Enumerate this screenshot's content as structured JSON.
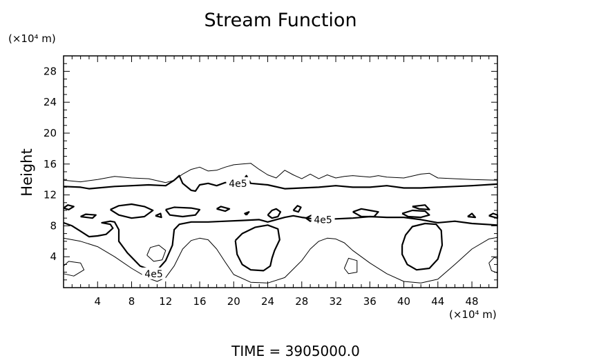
{
  "chart_data": {
    "type": "contour",
    "title": "Stream Function",
    "ylabel": "Height",
    "y_unit": "(×10⁴ m)",
    "x_unit": "(×10⁴ m)",
    "xlim": [
      0,
      51
    ],
    "ylim": [
      0,
      30
    ],
    "x_ticks": [
      4,
      8,
      12,
      16,
      20,
      24,
      28,
      32,
      36,
      40,
      44,
      48
    ],
    "y_ticks": [
      4,
      8,
      12,
      16,
      20,
      24,
      28
    ],
    "contour_labels": [
      {
        "text": "4e5",
        "x": 20.5,
        "y": 13.5
      },
      {
        "text": "4e5",
        "x": 30.5,
        "y": 8.8
      },
      {
        "text": "4e5",
        "x": 10.6,
        "y": 1.8
      }
    ],
    "footer": "TIME  =  3905000.0",
    "contours": {
      "thin": [
        [
          [
            0,
            13.9
          ],
          [
            2,
            13.7
          ],
          [
            4,
            14
          ],
          [
            6,
            14.4
          ],
          [
            8,
            14.2
          ],
          [
            10,
            14.1
          ],
          [
            12,
            13.6
          ],
          [
            13,
            13.9
          ],
          [
            14,
            14.7
          ],
          [
            15,
            15.3
          ],
          [
            16,
            15.6
          ],
          [
            17,
            15.1
          ],
          [
            18,
            15.2
          ],
          [
            19,
            15.6
          ],
          [
            20,
            15.9
          ],
          [
            21,
            16
          ],
          [
            22,
            16.1
          ],
          [
            23,
            15.3
          ],
          [
            24,
            14.6
          ],
          [
            25,
            14.2
          ],
          [
            26,
            15.2
          ],
          [
            27,
            14.6
          ],
          [
            28,
            14.1
          ],
          [
            29,
            14.7
          ],
          [
            30,
            14.1
          ],
          [
            31,
            14.6
          ],
          [
            32,
            14.2
          ],
          [
            33,
            14.4
          ],
          [
            34,
            14.5
          ],
          [
            36,
            14.3
          ],
          [
            37,
            14.5
          ],
          [
            38,
            14.3
          ],
          [
            40,
            14.2
          ],
          [
            42,
            14.7
          ],
          [
            43,
            14.8
          ],
          [
            44,
            14.2
          ],
          [
            46,
            14.1
          ],
          [
            48,
            14
          ],
          [
            51,
            13.9
          ]
        ],
        [
          [
            0,
            6.4
          ],
          [
            2,
            6
          ],
          [
            4,
            5.3
          ],
          [
            6,
            4
          ],
          [
            8,
            2.5
          ],
          [
            10,
            1.2
          ],
          [
            11,
            0.8
          ],
          [
            12,
            1.3
          ],
          [
            13,
            2.8
          ],
          [
            14,
            5
          ],
          [
            15,
            6.1
          ],
          [
            16,
            6.4
          ],
          [
            17,
            6.2
          ],
          [
            18,
            5
          ],
          [
            19,
            3.3
          ],
          [
            20,
            1.7
          ],
          [
            22,
            0.7
          ],
          [
            24,
            0.6
          ],
          [
            26,
            1.3
          ],
          [
            28,
            3.5
          ],
          [
            29,
            5
          ],
          [
            30,
            6
          ],
          [
            31,
            6.4
          ],
          [
            32,
            6.3
          ],
          [
            33,
            5.8
          ],
          [
            34,
            4.8
          ],
          [
            36,
            3.2
          ],
          [
            38,
            1.8
          ],
          [
            40,
            0.8
          ],
          [
            42,
            0.6
          ],
          [
            44,
            1.1
          ],
          [
            46,
            3
          ],
          [
            48,
            5
          ],
          [
            50,
            6.3
          ],
          [
            51,
            6.5
          ]
        ],
        [
          [
            0,
            2.8
          ],
          [
            0.6,
            3.4
          ],
          [
            2,
            3.2
          ],
          [
            2.4,
            2.3
          ],
          [
            1.2,
            1.5
          ],
          [
            0,
            1.8
          ]
        ],
        [
          [
            9.8,
            4.2
          ],
          [
            10.2,
            5.2
          ],
          [
            11.2,
            5.5
          ],
          [
            12,
            4.8
          ],
          [
            11.6,
            3.6
          ],
          [
            10.6,
            3.4
          ],
          [
            9.8,
            4.2
          ]
        ],
        [
          [
            33,
            2.5
          ],
          [
            33.5,
            3.8
          ],
          [
            34.5,
            3.5
          ],
          [
            34.5,
            2
          ],
          [
            33.5,
            1.8
          ],
          [
            33,
            2.5
          ]
        ],
        [
          [
            50,
            3.2
          ],
          [
            50.6,
            3.9
          ],
          [
            51,
            3.8
          ],
          [
            51,
            1.9
          ],
          [
            50.3,
            2.2
          ],
          [
            50,
            3.2
          ]
        ]
      ],
      "thick": [
        [
          [
            0,
            13.1
          ],
          [
            2,
            13
          ],
          [
            3,
            12.8
          ],
          [
            4,
            12.9
          ],
          [
            6,
            13.1
          ],
          [
            8,
            13.2
          ],
          [
            10,
            13.3
          ],
          [
            12,
            13.2
          ],
          [
            13,
            13.9
          ],
          [
            13.6,
            14.5
          ],
          [
            14,
            13.5
          ],
          [
            15,
            12.6
          ],
          [
            15.5,
            12.5
          ],
          [
            16,
            13.3
          ],
          [
            17,
            13.5
          ],
          [
            18,
            13.2
          ],
          [
            19,
            13.6
          ],
          [
            20,
            13.5
          ],
          [
            21,
            13.7
          ],
          [
            21.5,
            14.5
          ],
          [
            22,
            13.5
          ],
          [
            24,
            13.3
          ],
          [
            26,
            12.8
          ],
          [
            28,
            12.9
          ],
          [
            30,
            13
          ],
          [
            32,
            13.2
          ],
          [
            34,
            13
          ],
          [
            36,
            13
          ],
          [
            38,
            13.2
          ],
          [
            40,
            12.9
          ],
          [
            42,
            12.9
          ],
          [
            44,
            13
          ],
          [
            46,
            13.1
          ],
          [
            48,
            13.2
          ],
          [
            51,
            13.4
          ]
        ],
        [
          [
            0,
            8.4
          ],
          [
            1,
            8
          ],
          [
            2,
            7.3
          ],
          [
            3,
            6.6
          ],
          [
            4,
            6.7
          ],
          [
            5,
            6.9
          ],
          [
            5.8,
            7.7
          ],
          [
            5.5,
            8.2
          ],
          [
            4.5,
            8.4
          ],
          [
            5.5,
            8.6
          ],
          [
            6,
            8.5
          ],
          [
            6.5,
            7.5
          ],
          [
            6.5,
            6
          ],
          [
            7.5,
            4.5
          ],
          [
            9,
            2.8
          ],
          [
            10.2,
            2.3
          ],
          [
            11.2,
            2.5
          ],
          [
            12,
            3.5
          ],
          [
            12.8,
            5.5
          ],
          [
            13,
            7.5
          ],
          [
            13.6,
            8.2
          ],
          [
            15,
            8.5
          ],
          [
            17,
            8.5
          ],
          [
            19,
            8.6
          ],
          [
            21,
            8.7
          ],
          [
            23,
            8.8
          ],
          [
            24,
            8.5
          ],
          [
            25,
            8.8
          ],
          [
            26,
            9.1
          ],
          [
            27,
            9.3
          ],
          [
            28,
            9.1
          ],
          [
            30,
            8.8
          ],
          [
            32,
            8.9
          ],
          [
            34,
            9
          ],
          [
            36,
            9.2
          ],
          [
            38,
            9.1
          ],
          [
            40,
            9.1
          ],
          [
            42,
            8.8
          ],
          [
            44,
            8.4
          ],
          [
            46,
            8.6
          ],
          [
            48,
            8.3
          ],
          [
            51,
            8.1
          ]
        ],
        [
          [
            0,
            10.3
          ],
          [
            0.5,
            10.7
          ],
          [
            1.2,
            10.5
          ],
          [
            0.6,
            10.1
          ],
          [
            0,
            10.3
          ]
        ],
        [
          [
            2,
            9.2
          ],
          [
            2.6,
            9.5
          ],
          [
            3.8,
            9.4
          ],
          [
            3.4,
            9
          ],
          [
            2,
            9.2
          ]
        ],
        [
          [
            5.5,
            10.1
          ],
          [
            6.5,
            10.6
          ],
          [
            8,
            10.8
          ],
          [
            9.5,
            10.5
          ],
          [
            10.5,
            10
          ],
          [
            9.5,
            9.2
          ],
          [
            8,
            9
          ],
          [
            6.5,
            9.4
          ],
          [
            5.5,
            10.1
          ]
        ],
        [
          [
            10.8,
            9.3
          ],
          [
            11.5,
            9.1
          ],
          [
            11.4,
            9.6
          ],
          [
            10.8,
            9.3
          ]
        ],
        [
          [
            12,
            10.1
          ],
          [
            13,
            10.4
          ],
          [
            15,
            10.3
          ],
          [
            16,
            10.1
          ],
          [
            15.5,
            9.4
          ],
          [
            14,
            9.2
          ],
          [
            12.5,
            9.4
          ],
          [
            12,
            10.1
          ]
        ],
        [
          [
            18,
            10.2
          ],
          [
            19,
            9.9
          ],
          [
            19.5,
            10.2
          ],
          [
            18.5,
            10.5
          ],
          [
            18,
            10.2
          ]
        ],
        [
          [
            21.5,
            9.4
          ],
          [
            21.8,
            9.8
          ],
          [
            21.3,
            9.6
          ],
          [
            21.5,
            9.4
          ]
        ],
        [
          [
            24,
            9.4
          ],
          [
            24.5,
            10
          ],
          [
            25,
            10.2
          ],
          [
            25.5,
            9.8
          ],
          [
            25.2,
            9.2
          ],
          [
            24.5,
            9
          ],
          [
            24,
            9.4
          ]
        ],
        [
          [
            27,
            10
          ],
          [
            27.5,
            10.6
          ],
          [
            27.9,
            10.4
          ],
          [
            27.6,
            9.8
          ],
          [
            27,
            10
          ]
        ],
        [
          [
            28.5,
            9
          ],
          [
            29.2,
            9.4
          ],
          [
            29.8,
            8.9
          ],
          [
            29,
            8.6
          ],
          [
            28.5,
            9
          ]
        ],
        [
          [
            34,
            9.8
          ],
          [
            35,
            10.2
          ],
          [
            36,
            10
          ],
          [
            37,
            9.8
          ],
          [
            36.5,
            9.2
          ],
          [
            35,
            9.2
          ],
          [
            34,
            9.8
          ]
        ],
        [
          [
            39.8,
            9.6
          ],
          [
            41,
            10
          ],
          [
            42.5,
            9.9
          ],
          [
            43,
            9.4
          ],
          [
            42,
            9.1
          ],
          [
            40.5,
            9.2
          ],
          [
            39.8,
            9.6
          ]
        ],
        [
          [
            41,
            10.5
          ],
          [
            42.5,
            10.7
          ],
          [
            43,
            10.1
          ],
          [
            41.8,
            10.2
          ],
          [
            41,
            10.5
          ]
        ],
        [
          [
            47.5,
            9.2
          ],
          [
            48,
            9.6
          ],
          [
            48.4,
            9.1
          ],
          [
            47.5,
            9.2
          ]
        ],
        [
          [
            50,
            9.3
          ],
          [
            50.5,
            9.6
          ],
          [
            51,
            9.4
          ],
          [
            51,
            9
          ],
          [
            50,
            9.3
          ]
        ],
        [
          [
            20.2,
            6.1
          ],
          [
            21,
            7
          ],
          [
            22.5,
            7.8
          ],
          [
            24,
            8.1
          ],
          [
            25.2,
            7.6
          ],
          [
            25.4,
            6.2
          ],
          [
            24.8,
            4.8
          ],
          [
            24.5,
            3.8
          ],
          [
            24.3,
            2.8
          ],
          [
            23.5,
            2.2
          ],
          [
            22,
            2.3
          ],
          [
            21,
            3
          ],
          [
            20.4,
            4.3
          ],
          [
            20.2,
            6.1
          ]
        ],
        [
          [
            39.8,
            5.5
          ],
          [
            40.2,
            6.8
          ],
          [
            41,
            7.9
          ],
          [
            42.5,
            8.3
          ],
          [
            43.8,
            8.2
          ],
          [
            44.4,
            7.4
          ],
          [
            44.5,
            5.5
          ],
          [
            44,
            3.7
          ],
          [
            43,
            2.5
          ],
          [
            41.5,
            2.3
          ],
          [
            40.4,
            3
          ],
          [
            39.8,
            4.3
          ],
          [
            39.8,
            5.5
          ]
        ]
      ]
    }
  }
}
